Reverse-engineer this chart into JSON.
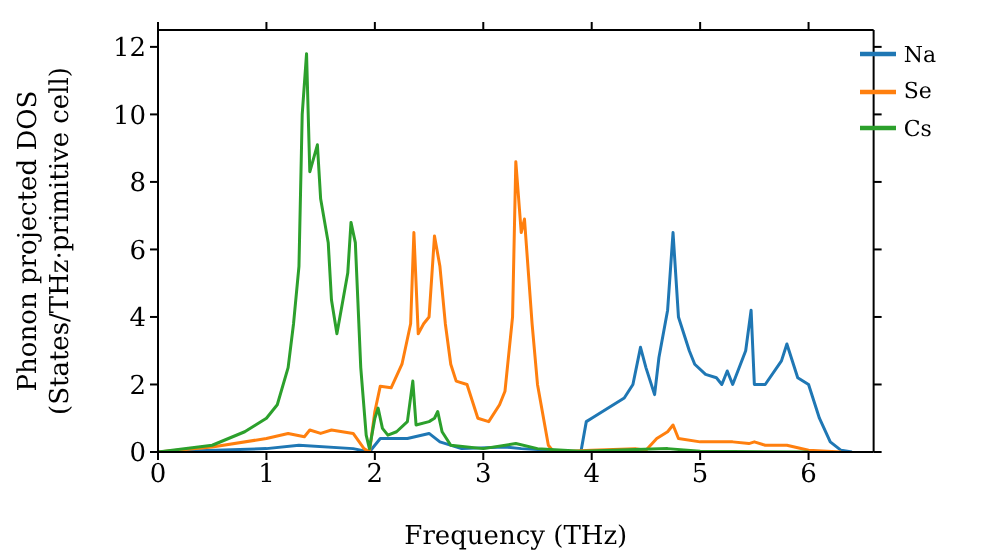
{
  "chart_data": {
    "type": "line",
    "xlabel": "Frequency (THz)",
    "ylabel": "Phonon projected DOS\n(States/THz·primitive cell)",
    "xlim": [
      0,
      6.6
    ],
    "ylim": [
      0,
      12.5
    ],
    "xticks": [
      0,
      1,
      2,
      3,
      4,
      5,
      6
    ],
    "yticks": [
      0,
      2,
      4,
      6,
      8,
      10,
      12
    ],
    "grid": false,
    "legend": "top right",
    "marker": "none",
    "line_style": "solid",
    "series": [
      {
        "name": "Na",
        "color": "#1f77b4",
        "x": [
          0,
          1.0,
          1.3,
          1.8,
          1.95,
          2.05,
          2.3,
          2.5,
          2.6,
          2.8,
          3.2,
          3.35,
          3.9,
          3.95,
          4.0,
          4.3,
          4.38,
          4.45,
          4.5,
          4.58,
          4.62,
          4.7,
          4.75,
          4.8,
          4.9,
          4.95,
          5.05,
          5.15,
          5.2,
          5.25,
          5.3,
          5.42,
          5.47,
          5.5,
          5.6,
          5.75,
          5.8,
          5.9,
          6.0,
          6.1,
          6.2,
          6.3,
          6.4
        ],
        "values": [
          0,
          0.1,
          0.2,
          0.1,
          0.0,
          0.4,
          0.4,
          0.55,
          0.3,
          0.1,
          0.15,
          0.1,
          0.0,
          0.9,
          1.0,
          1.6,
          2.0,
          3.1,
          2.5,
          1.7,
          2.8,
          4.2,
          6.5,
          4.0,
          3.0,
          2.6,
          2.3,
          2.2,
          2.0,
          2.4,
          2.0,
          3.0,
          4.2,
          2.0,
          2.0,
          2.7,
          3.2,
          2.2,
          2.0,
          1.0,
          0.3,
          0.05,
          0
        ]
      },
      {
        "name": "Se",
        "color": "#ff7f0e",
        "x": [
          0,
          0.5,
          1.0,
          1.2,
          1.35,
          1.4,
          1.5,
          1.6,
          1.7,
          1.8,
          1.9,
          1.95,
          2.0,
          2.05,
          2.15,
          2.25,
          2.33,
          2.36,
          2.4,
          2.45,
          2.5,
          2.55,
          2.6,
          2.65,
          2.7,
          2.75,
          2.85,
          2.95,
          3.05,
          3.15,
          3.2,
          3.27,
          3.3,
          3.35,
          3.38,
          3.45,
          3.5,
          3.6,
          3.65,
          4.0,
          4.4,
          4.5,
          4.6,
          4.7,
          4.75,
          4.8,
          5.0,
          5.3,
          5.45,
          5.5,
          5.6,
          5.8,
          6.0,
          6.3
        ],
        "values": [
          0,
          0.15,
          0.4,
          0.55,
          0.45,
          0.65,
          0.55,
          0.65,
          0.6,
          0.55,
          0.1,
          0.0,
          1.2,
          1.95,
          1.9,
          2.6,
          3.8,
          6.5,
          3.5,
          3.8,
          4.0,
          6.4,
          5.5,
          3.8,
          2.6,
          2.1,
          2.0,
          1.0,
          0.9,
          1.4,
          1.8,
          4.0,
          8.6,
          6.5,
          6.9,
          3.8,
          2.0,
          0.2,
          0,
          0.05,
          0.1,
          0.05,
          0.4,
          0.6,
          0.8,
          0.4,
          0.3,
          0.3,
          0.25,
          0.3,
          0.2,
          0.2,
          0.05,
          0
        ]
      },
      {
        "name": "Cs",
        "color": "#2ca02c",
        "x": [
          0,
          0.5,
          0.8,
          1.0,
          1.1,
          1.2,
          1.25,
          1.3,
          1.33,
          1.37,
          1.4,
          1.47,
          1.5,
          1.57,
          1.6,
          1.65,
          1.7,
          1.75,
          1.78,
          1.82,
          1.87,
          1.92,
          1.95,
          2.0,
          2.03,
          2.07,
          2.12,
          2.2,
          2.3,
          2.35,
          2.38,
          2.5,
          2.55,
          2.58,
          2.62,
          2.7,
          3.0,
          3.3,
          3.5,
          3.9,
          4.7,
          5.0,
          6.0
        ],
        "values": [
          0,
          0.2,
          0.6,
          1.0,
          1.4,
          2.5,
          3.8,
          5.5,
          10,
          11.8,
          8.3,
          9.1,
          7.5,
          6.2,
          4.5,
          3.5,
          4.4,
          5.3,
          6.8,
          6.2,
          2.5,
          0.5,
          0.1,
          1.0,
          1.3,
          0.7,
          0.5,
          0.6,
          0.9,
          2.1,
          0.8,
          0.9,
          1.0,
          1.2,
          0.6,
          0.2,
          0.1,
          0.25,
          0.1,
          0.02,
          0.1,
          0.02,
          0
        ]
      }
    ]
  }
}
